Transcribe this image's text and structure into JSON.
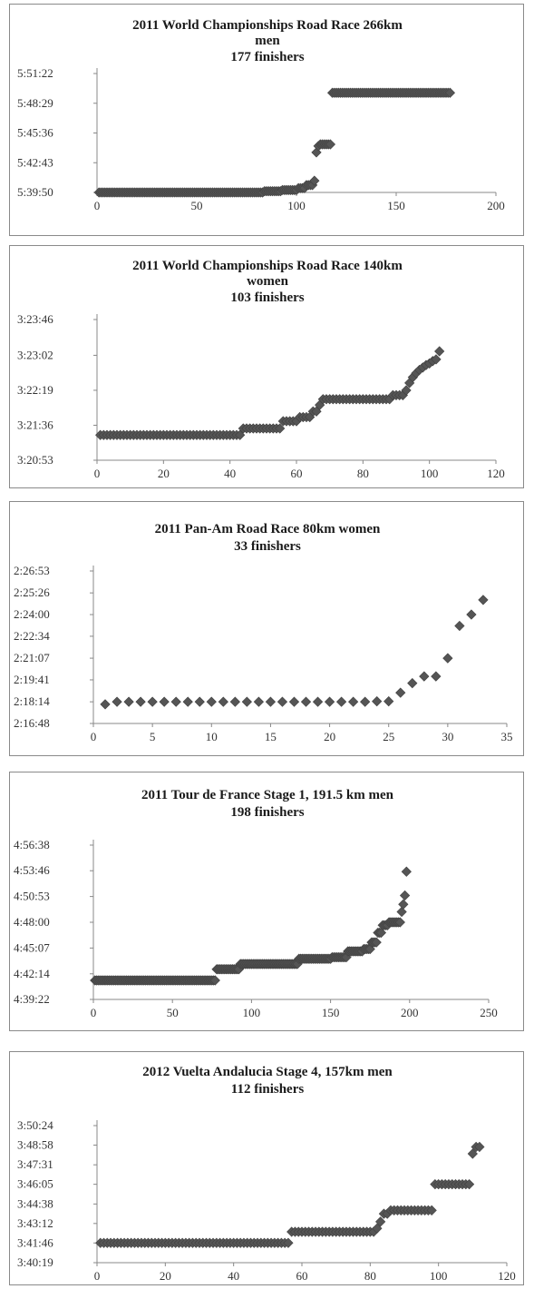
{
  "chart_data": [
    {
      "type": "scatter",
      "title_lines": [
        "2011 World Championships Road Race 266km",
        "men",
        "177 finishers"
      ],
      "xlabel": "",
      "ylabel": "",
      "xlim": [
        0,
        200
      ],
      "xticks": [
        "0",
        "50",
        "100",
        "150",
        "200"
      ],
      "ylim": [
        "5:39:50",
        "5:51:22"
      ],
      "yticks": [
        "5:39:50",
        "5:42:43",
        "5:45:36",
        "5:48:29",
        "5:51:22"
      ],
      "marker": "diamond",
      "color": "#555555",
      "series": [
        {
          "segments": [
            {
              "from": 1,
              "to": 83,
              "y": "5:39:50"
            },
            {
              "from": 84,
              "to": 92,
              "y": "5:39:57"
            },
            {
              "from": 93,
              "to": 100,
              "y": "5:40:04"
            },
            {
              "from": 101,
              "to": 104,
              "y": "5:40:15"
            },
            {
              "from": 105,
              "to": 108,
              "y": "5:40:33"
            },
            {
              "from": 109,
              "to": 109,
              "y": "5:40:58"
            },
            {
              "from": 110,
              "to": 110,
              "y": "5:43:43"
            },
            {
              "from": 111,
              "to": 111,
              "y": "5:44:20"
            },
            {
              "from": 112,
              "to": 117,
              "y": "5:44:30"
            },
            {
              "from": 118,
              "to": 177,
              "y": "5:49:30"
            }
          ]
        }
      ]
    },
    {
      "type": "scatter",
      "title_lines": [
        "2011 World Championships Road Race 140km",
        "women",
        "103 finishers"
      ],
      "xlabel": "",
      "ylabel": "",
      "xlim": [
        0,
        120
      ],
      "xticks": [
        "0",
        "20",
        "40",
        "60",
        "80",
        "100",
        "120"
      ],
      "ylim": [
        "3:20:53",
        "3:23:46"
      ],
      "yticks": [
        "3:20:53",
        "3:21:36",
        "3:22:19",
        "3:23:02",
        "3:23:46"
      ],
      "marker": "diamond",
      "color": "#555555",
      "series": [
        {
          "segments": [
            {
              "from": 1,
              "to": 43,
              "y": "3:21:24"
            },
            {
              "from": 44,
              "to": 55,
              "y": "3:21:32"
            },
            {
              "from": 56,
              "to": 60,
              "y": "3:21:41"
            },
            {
              "from": 61,
              "to": 64,
              "y": "3:21:46"
            },
            {
              "from": 65,
              "to": 66,
              "y": "3:21:53"
            },
            {
              "from": 67,
              "to": 67,
              "y": "3:22:01"
            },
            {
              "from": 68,
              "to": 88,
              "y": "3:22:08"
            },
            {
              "from": 89,
              "to": 92,
              "y": "3:22:13"
            },
            {
              "from": 93,
              "to": 93,
              "y": "3:22:19"
            },
            {
              "from": 94,
              "to": 94,
              "y": "3:22:28"
            },
            {
              "from": 95,
              "to": 95,
              "y": "3:22:35"
            },
            {
              "from": 96,
              "to": 96,
              "y": "3:22:40"
            },
            {
              "from": 97,
              "to": 97,
              "y": "3:22:44"
            },
            {
              "from": 98,
              "to": 98,
              "y": "3:22:47"
            },
            {
              "from": 99,
              "to": 99,
              "y": "3:22:50"
            },
            {
              "from": 100,
              "to": 100,
              "y": "3:22:52"
            },
            {
              "from": 101,
              "to": 101,
              "y": "3:22:55"
            },
            {
              "from": 102,
              "to": 102,
              "y": "3:22:57"
            },
            {
              "from": 103,
              "to": 103,
              "y": "3:23:07"
            }
          ]
        }
      ]
    },
    {
      "type": "scatter",
      "title_lines": [
        "2011 Pan-Am Road Race 80km women",
        "33 finishers"
      ],
      "xlabel": "",
      "ylabel": "",
      "xlim": [
        0,
        35
      ],
      "xticks": [
        "0",
        "5",
        "10",
        "15",
        "20",
        "25",
        "30",
        "35"
      ],
      "ylim": [
        "2:16:48",
        "2:26:53"
      ],
      "yticks": [
        "2:16:48",
        "2:18:14",
        "2:19:41",
        "2:21:07",
        "2:22:34",
        "2:24:00",
        "2:25:26",
        "2:26:53"
      ],
      "marker": "diamond",
      "color": "#555555",
      "series": [
        {
          "x": [
            1,
            2,
            3,
            4,
            5,
            6,
            7,
            8,
            9,
            10,
            11,
            12,
            13,
            14,
            15,
            16,
            17,
            18,
            19,
            20,
            21,
            22,
            23,
            24,
            25,
            26,
            27,
            28,
            29,
            30,
            31,
            32,
            33
          ],
          "y": [
            "2:18:04",
            "2:18:14",
            "2:18:14",
            "2:18:14",
            "2:18:14",
            "2:18:14",
            "2:18:14",
            "2:18:14",
            "2:18:14",
            "2:18:14",
            "2:18:14",
            "2:18:14",
            "2:18:14",
            "2:18:14",
            "2:18:14",
            "2:18:14",
            "2:18:14",
            "2:18:14",
            "2:18:14",
            "2:18:14",
            "2:18:14",
            "2:18:14",
            "2:18:14",
            "2:18:16",
            "2:18:16",
            "2:18:50",
            "2:19:28",
            "2:19:55",
            "2:19:55",
            "2:21:07",
            "2:23:15",
            "2:24:00",
            "2:24:58"
          ]
        }
      ]
    },
    {
      "type": "scatter",
      "title_lines": [
        "2011 Tour de France Stage 1, 191.5 km men",
        "198 finishers"
      ],
      "xlabel": "",
      "ylabel": "",
      "xlim": [
        0,
        250
      ],
      "xticks": [
        "0",
        "50",
        "100",
        "150",
        "200",
        "250"
      ],
      "ylim": [
        "4:39:22",
        "4:56:38"
      ],
      "yticks": [
        "4:39:22",
        "4:42:14",
        "4:45:07",
        "4:48:00",
        "4:50:53",
        "4:53:46",
        "4:56:38"
      ],
      "marker": "diamond",
      "color": "#555555",
      "series": [
        {
          "segments": [
            {
              "from": 1,
              "to": 77,
              "y": "4:41:30"
            },
            {
              "from": 78,
              "to": 92,
              "y": "4:42:45"
            },
            {
              "from": 93,
              "to": 129,
              "y": "4:43:20"
            },
            {
              "from": 130,
              "to": 150,
              "y": "4:43:55"
            },
            {
              "from": 151,
              "to": 160,
              "y": "4:44:05"
            },
            {
              "from": 161,
              "to": 170,
              "y": "4:44:45"
            },
            {
              "from": 171,
              "to": 175,
              "y": "4:45:00"
            },
            {
              "from": 176,
              "to": 179,
              "y": "4:45:45"
            },
            {
              "from": 180,
              "to": 182,
              "y": "4:46:50"
            },
            {
              "from": 183,
              "to": 186,
              "y": "4:47:40"
            },
            {
              "from": 187,
              "to": 194,
              "y": "4:48:00"
            },
            {
              "from": 195,
              "to": 195,
              "y": "4:49:10"
            },
            {
              "from": 196,
              "to": 196,
              "y": "4:50:00"
            },
            {
              "from": 197,
              "to": 197,
              "y": "4:51:00"
            },
            {
              "from": 198,
              "to": 198,
              "y": "4:53:40"
            }
          ]
        }
      ]
    },
    {
      "type": "scatter",
      "title_lines": [
        "2012 Vuelta Andalucia Stage 4, 157km men",
        "112 finishers"
      ],
      "xlabel": "",
      "ylabel": "",
      "xlim": [
        0,
        120
      ],
      "xticks": [
        "0",
        "20",
        "40",
        "60",
        "80",
        "100",
        "120"
      ],
      "ylim": [
        "3:40:19",
        "3:50:24"
      ],
      "yticks": [
        "3:40:19",
        "3:41:46",
        "3:43:12",
        "3:44:38",
        "3:46:05",
        "3:47:31",
        "3:48:58",
        "3:50:24"
      ],
      "marker": "diamond",
      "color": "#555555",
      "series": [
        {
          "segments": [
            {
              "from": 1,
              "to": 56,
              "y": "3:41:46"
            },
            {
              "from": 57,
              "to": 81,
              "y": "3:42:35"
            },
            {
              "from": 82,
              "to": 82,
              "y": "3:42:50"
            },
            {
              "from": 83,
              "to": 83,
              "y": "3:43:20"
            },
            {
              "from": 84,
              "to": 85,
              "y": "3:43:55"
            },
            {
              "from": 86,
              "to": 98,
              "y": "3:44:10"
            },
            {
              "from": 99,
              "to": 109,
              "y": "3:46:05"
            },
            {
              "from": 110,
              "to": 110,
              "y": "3:48:20"
            },
            {
              "from": 111,
              "to": 112,
              "y": "3:48:50"
            }
          ]
        }
      ]
    }
  ]
}
